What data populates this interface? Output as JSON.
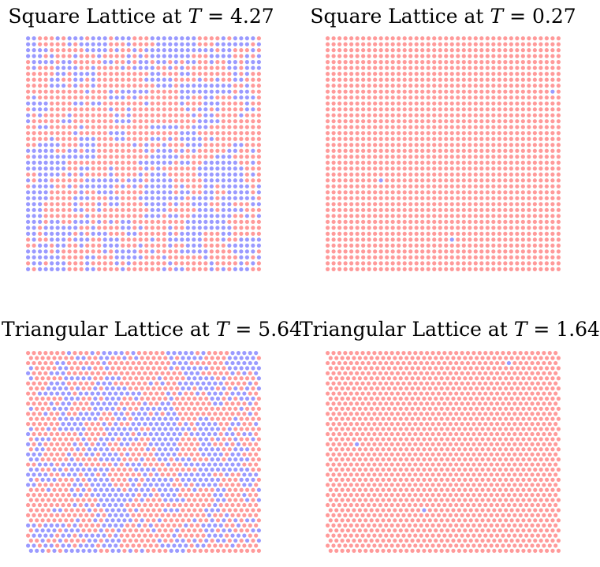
{
  "colors": {
    "spin_up": "#ff9a9a",
    "spin_down": "#9a9aff"
  },
  "chart_data": [
    {
      "type": "scatter",
      "lattice": "square",
      "title": {
        "prefix": "Square Lattice at ",
        "symbol": "T",
        "equals": " = ",
        "value": "4.27"
      },
      "temperature": 4.27,
      "grid": {
        "rows": 40,
        "cols": 40
      },
      "mostly_up": false,
      "fraction_up": 0.55,
      "seed": 11,
      "minority_sites": []
    },
    {
      "type": "scatter",
      "lattice": "square",
      "title": {
        "prefix": "Square Lattice at ",
        "symbol": "T",
        "equals": " = ",
        "value": "0.27"
      },
      "temperature": 0.27,
      "grid": {
        "rows": 40,
        "cols": 40
      },
      "mostly_up": true,
      "minority_sites": [
        {
          "row": 9,
          "col": 38
        },
        {
          "row": 24,
          "col": 9
        },
        {
          "row": 34,
          "col": 21
        }
      ]
    },
    {
      "type": "scatter",
      "lattice": "triangular",
      "title": {
        "prefix": "Triangular Lattice at ",
        "symbol": "T",
        "equals": " = ",
        "value": "5.64"
      },
      "temperature": 5.64,
      "grid": {
        "rows": 40,
        "cols": 40
      },
      "mostly_up": false,
      "fraction_up": 0.55,
      "seed": 29,
      "minority_sites": []
    },
    {
      "type": "scatter",
      "lattice": "triangular",
      "title": {
        "prefix": "Triangular Lattice at ",
        "symbol": "T",
        "equals": " = ",
        "value": "1.64"
      },
      "temperature": 1.64,
      "grid": {
        "rows": 40,
        "cols": 40
      },
      "mostly_up": true,
      "minority_sites": [
        {
          "row": 2,
          "col": 31
        },
        {
          "row": 18,
          "col": 5
        },
        {
          "row": 31,
          "col": 16
        }
      ]
    }
  ]
}
